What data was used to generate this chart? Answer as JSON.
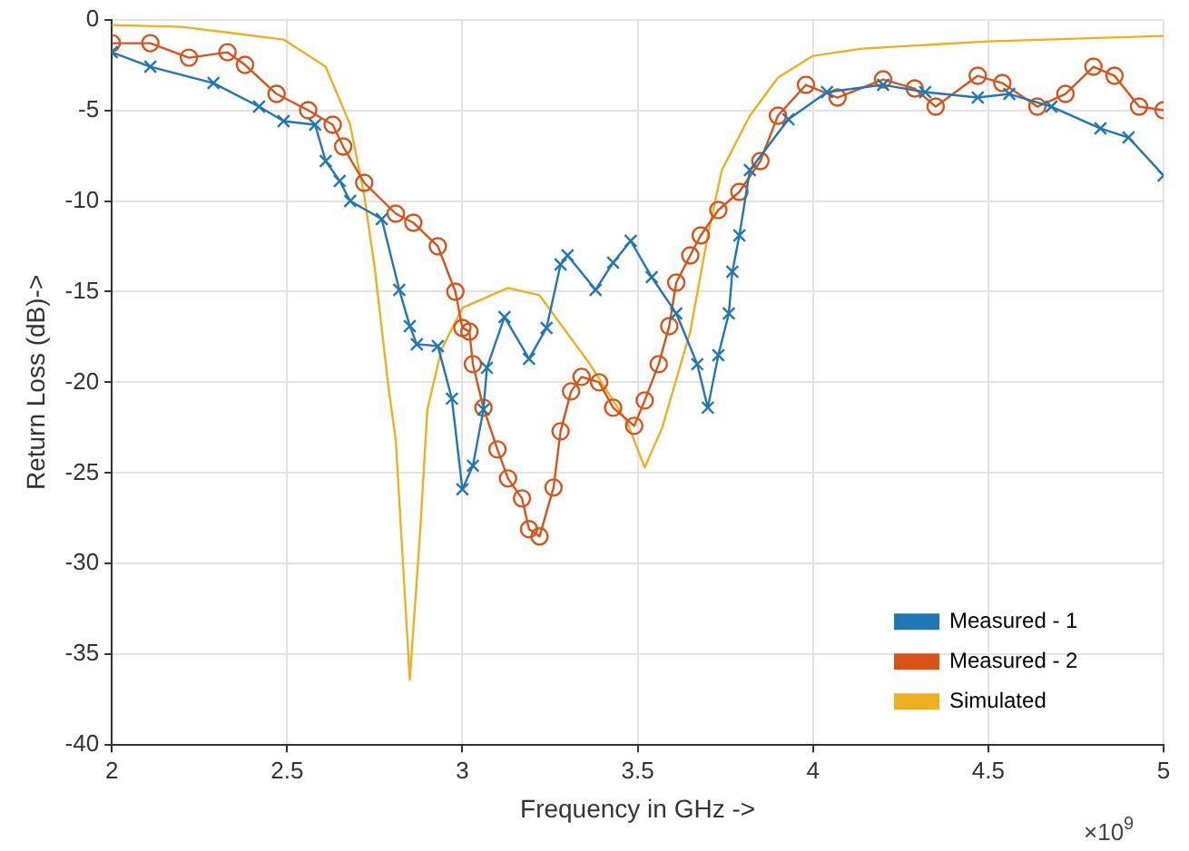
{
  "chart_data": {
    "type": "line",
    "xlabel": "Frequency in GHz ->",
    "ylabel": "Return Loss (dB)->",
    "xlim": [
      2,
      5
    ],
    "xticks": [
      2,
      2.5,
      3,
      3.5,
      4,
      4.5,
      5
    ],
    "ylim": [
      -40,
      0
    ],
    "yticks": [
      -40,
      -35,
      -30,
      -25,
      -20,
      -15,
      -10,
      -5,
      0
    ],
    "grid": true,
    "legend": "bottom right",
    "annotations": [
      "×10$^{9}$"
    ],
    "series": [
      {
        "name": "Measured - 1",
        "color": "#1f77b4",
        "marker": "cross",
        "x": [
          2,
          2.11,
          2.29,
          2.42,
          2.49,
          2.58,
          2.61,
          2.65,
          2.68,
          2.77,
          2.82,
          2.85,
          2.87,
          2.93,
          2.97,
          3.0,
          3.03,
          3.06,
          3.07,
          3.12,
          3.19,
          3.24,
          3.28,
          3.3,
          3.38,
          3.43,
          3.48,
          3.54,
          3.61,
          3.67,
          3.7,
          3.73,
          3.76,
          3.77,
          3.79,
          3.82,
          3.93,
          4.04,
          4.2,
          4.32,
          4.47,
          4.56,
          4.68,
          4.82,
          4.9,
          5.0
        ],
        "values": [
          -1.8,
          -2.6,
          -3.5,
          -4.8,
          -5.6,
          -5.8,
          -7.8,
          -8.9,
          -10,
          -11,
          -14.9,
          -16.9,
          -17.9,
          -18,
          -20.9,
          -25.9,
          -24.6,
          -21.5,
          -19.2,
          -16.4,
          -18.7,
          -17,
          -13.5,
          -13,
          -14.9,
          -13.4,
          -12.2,
          -14.2,
          -16.2,
          -19,
          -21.4,
          -18.5,
          -16.2,
          -13.9,
          -11.9,
          -8.3,
          -5.5,
          -4,
          -3.6,
          -4,
          -4.3,
          -4.1,
          -4.8,
          -6,
          -6.5,
          -8.6
        ]
      },
      {
        "name": "Measured - 2",
        "color": "#d95319",
        "marker": "circle",
        "x": [
          2,
          2.11,
          2.22,
          2.33,
          2.38,
          2.47,
          2.56,
          2.63,
          2.66,
          2.72,
          2.81,
          2.86,
          2.93,
          2.98,
          3.0,
          3.02,
          3.03,
          3.06,
          3.1,
          3.13,
          3.17,
          3.19,
          3.22,
          3.26,
          3.28,
          3.31,
          3.34,
          3.39,
          3.43,
          3.49,
          3.52,
          3.56,
          3.59,
          3.61,
          3.65,
          3.68,
          3.73,
          3.79,
          3.85,
          3.9,
          3.98,
          4.07,
          4.2,
          4.29,
          4.35,
          4.47,
          4.54,
          4.64,
          4.72,
          4.8,
          4.86,
          4.93,
          5.0
        ],
        "values": [
          -1.3,
          -1.3,
          -2.1,
          -1.8,
          -2.5,
          -4.1,
          -5,
          -5.8,
          -7,
          -9,
          -10.7,
          -11.2,
          -12.5,
          -15,
          -17,
          -17.2,
          -19,
          -21.4,
          -23.7,
          -25.3,
          -26.4,
          -28.1,
          -28.5,
          -25.8,
          -22.7,
          -20.5,
          -19.7,
          -20,
          -21.4,
          -22.4,
          -21,
          -19,
          -16.9,
          -14.5,
          -13,
          -11.9,
          -10.5,
          -9.5,
          -7.8,
          -5.3,
          -3.6,
          -4.3,
          -3.3,
          -3.8,
          -4.8,
          -3.1,
          -3.5,
          -4.8,
          -4.1,
          -2.6,
          -3.1,
          -4.8,
          -5
        ]
      },
      {
        "name": "Simulated",
        "color": "#edb120",
        "marker": "none",
        "x": [
          2,
          2.2,
          2.49,
          2.61,
          2.68,
          2.72,
          2.75,
          2.79,
          2.81,
          2.85,
          2.88,
          2.9,
          2.94,
          3.0,
          3.13,
          3.22,
          3.36,
          3.47,
          3.52,
          3.57,
          3.65,
          3.7,
          3.74,
          3.82,
          3.9,
          4.0,
          4.14,
          4.5,
          5.0
        ],
        "values": [
          -0.3,
          -0.4,
          -1.1,
          -2.6,
          -5.8,
          -9.7,
          -13.7,
          -20.4,
          -23.2,
          -36.4,
          -28.1,
          -21.5,
          -18.2,
          -15.9,
          -14.8,
          -15.2,
          -18.9,
          -22.2,
          -24.7,
          -22.5,
          -17.2,
          -11.9,
          -8.3,
          -5.3,
          -3.2,
          -2,
          -1.6,
          -1.2,
          -0.9
        ]
      }
    ]
  }
}
